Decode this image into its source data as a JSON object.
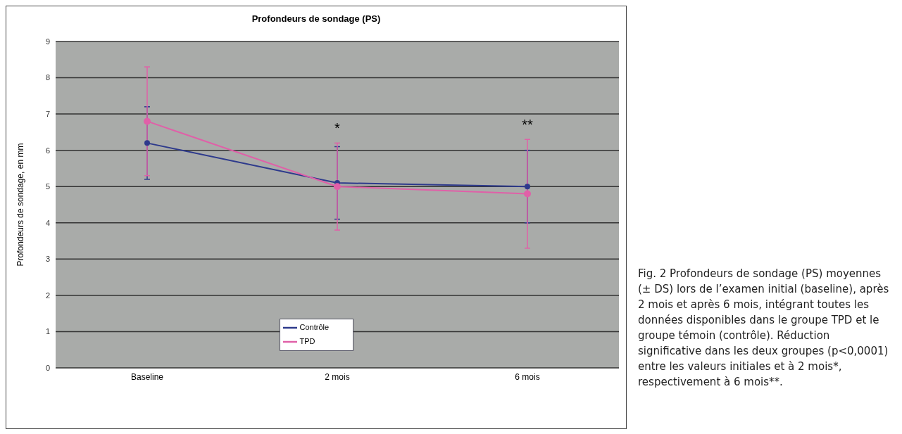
{
  "chart_data": {
    "type": "line",
    "title": "Profondeurs de sondage (PS)",
    "ylabel": "Profondeurs de sondage, en mm",
    "categories": [
      "Baseline",
      "2 mois",
      "6 mois"
    ],
    "series": [
      {
        "name": "Contrôle",
        "color": "#2e3a8c",
        "values": [
          6.2,
          5.1,
          5.0
        ],
        "errors": [
          1.0,
          1.0,
          1.0
        ]
      },
      {
        "name": "TPD",
        "color": "#e060a8",
        "values": [
          6.8,
          5.0,
          4.8
        ],
        "errors": [
          1.5,
          1.2,
          1.5
        ]
      }
    ],
    "ylim": [
      0,
      9
    ],
    "yticks": [
      0,
      1,
      2,
      3,
      4,
      5,
      6,
      7,
      8,
      9
    ],
    "grid": "y",
    "legend": "bottom",
    "marker": "circle",
    "line_style": "solid",
    "annotations": [
      "*",
      "**",
      "Fig. 2 Profondeurs de sondage (PS) moyennes (± DS) lors de l’examen initial (baseline), après 2 mois et après 6 mois, intégrant toutes les données disponibles dans le groupe TPD et le groupe témoin (contrôle). Réduction significative dans les deux groupes (p<0,0001) entre les valeurs initiales et à 2 mois*, respectivement à 6 mois**."
    ]
  }
}
